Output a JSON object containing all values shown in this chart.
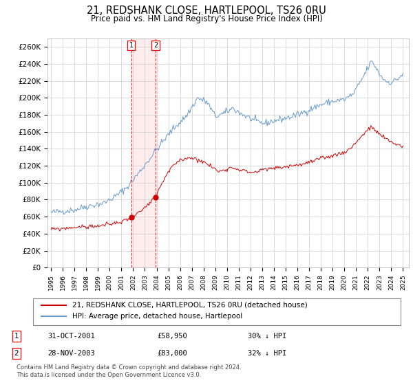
{
  "title": "21, REDSHANK CLOSE, HARTLEPOOL, TS26 0RU",
  "subtitle": "Price paid vs. HM Land Registry's House Price Index (HPI)",
  "background_color": "#ffffff",
  "grid_color": "#cccccc",
  "plot_bg_color": "#ffffff",
  "ylim": [
    0,
    270000
  ],
  "yticks": [
    0,
    20000,
    40000,
    60000,
    80000,
    100000,
    120000,
    140000,
    160000,
    180000,
    200000,
    220000,
    240000,
    260000
  ],
  "ytick_labels": [
    "£0",
    "£20K",
    "£40K",
    "£60K",
    "£80K",
    "£100K",
    "£120K",
    "£140K",
    "£160K",
    "£180K",
    "£200K",
    "£220K",
    "£240K",
    "£260K"
  ],
  "hpi_color": "#6699cc",
  "price_color": "#cc0000",
  "sale1_date": "31-OCT-2001",
  "sale1_price": 58950,
  "sale1_label": "30% ↓ HPI",
  "sale1_x": 2001.83,
  "sale2_date": "28-NOV-2003",
  "sale2_price": 83000,
  "sale2_label": "32% ↓ HPI",
  "sale2_x": 2003.91,
  "legend_label_price": "21, REDSHANK CLOSE, HARTLEPOOL, TS26 0RU (detached house)",
  "legend_label_hpi": "HPI: Average price, detached house, Hartlepool",
  "footer1": "Contains HM Land Registry data © Crown copyright and database right 2024.",
  "footer2": "This data is licensed under the Open Government Licence v3.0."
}
